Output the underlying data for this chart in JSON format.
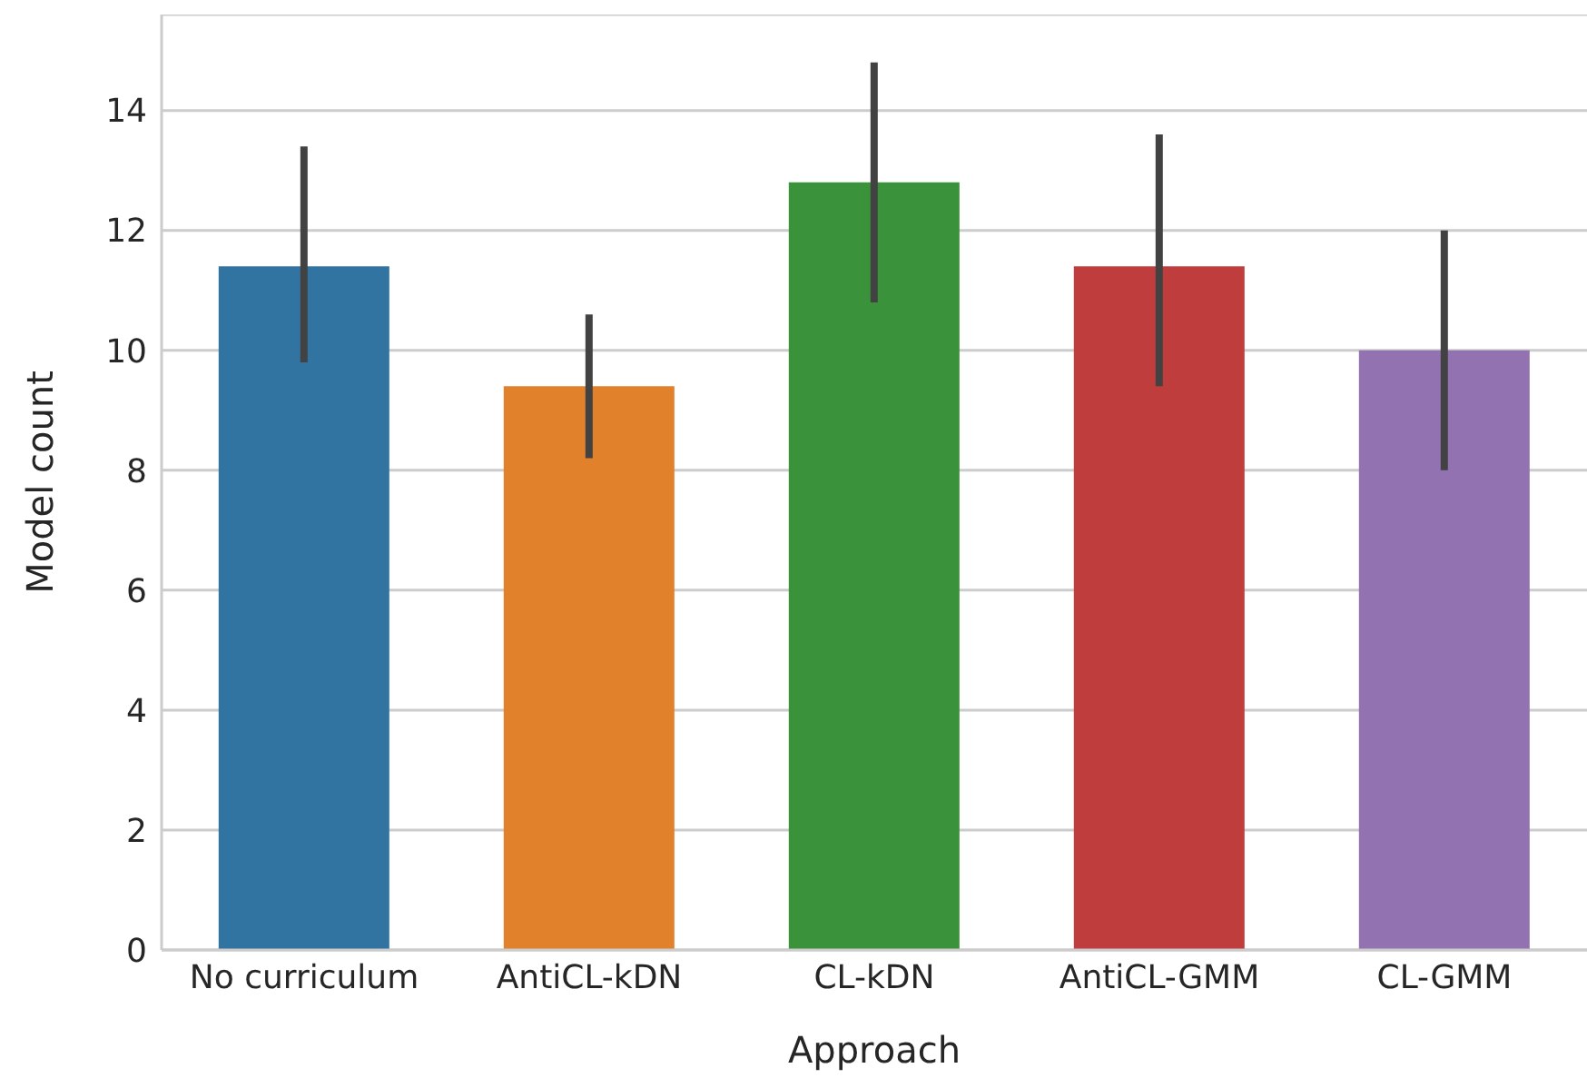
{
  "chart_data": {
    "type": "bar",
    "xlabel": "Approach",
    "ylabel": "Model count",
    "categories": [
      "No curriculum",
      "AntiCL-kDN",
      "CL-kDN",
      "AntiCL-GMM",
      "CL-GMM"
    ],
    "values": [
      11.4,
      9.4,
      12.8,
      11.4,
      10
    ],
    "colors": [
      "#3274a1",
      "#e1812c",
      "#3a923a",
      "#c03d3e",
      "#9372b2"
    ],
    "errors": [
      [
        9.8,
        13.4
      ],
      [
        8.2,
        10.6
      ],
      [
        10.8,
        14.8
      ],
      [
        9.4,
        13.6
      ],
      [
        8,
        12
      ]
    ],
    "ylim": [
      0,
      15.6
    ],
    "yticks": [
      0,
      2,
      4,
      6,
      8,
      10,
      12,
      14
    ],
    "grid": "y"
  }
}
